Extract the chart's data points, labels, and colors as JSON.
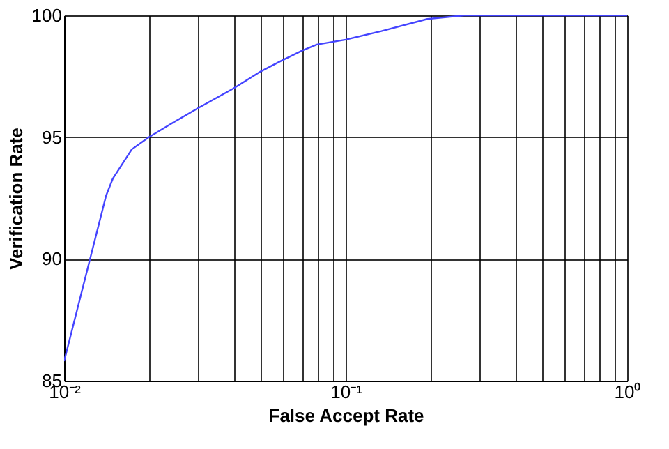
{
  "chart_data": {
    "type": "line",
    "xlabel": "False Accept Rate",
    "ylabel": "Verification Rate",
    "log": "x",
    "grid": true,
    "marker": "none",
    "line_style": "solid",
    "x": [
      0.01,
      0.0141,
      0.0149,
      0.0174,
      0.02,
      0.0244,
      0.03,
      0.04,
      0.05,
      0.0583,
      0.07,
      0.079,
      0.1,
      0.134,
      0.195,
      0.264,
      0.5,
      1
    ],
    "series": [
      {
        "color": "#4444ff",
        "values": [
          85.8,
          92.6,
          93.3,
          94.5,
          95.0,
          95.6,
          96.2,
          97.0,
          97.7,
          98.1,
          98.55,
          98.8,
          99.0,
          99.35,
          99.85,
          100,
          100,
          100
        ]
      }
    ],
    "xlim": [
      0.01,
      1
    ],
    "ylim": [
      85,
      100
    ],
    "xticks": [
      {
        "value": 0.01,
        "label": "10⁻²"
      },
      {
        "value": 0.02,
        "label": null
      },
      {
        "value": 0.03,
        "label": null
      },
      {
        "value": 0.04,
        "label": null
      },
      {
        "value": 0.05,
        "label": null
      },
      {
        "value": 0.06,
        "label": null
      },
      {
        "value": 0.07,
        "label": null
      },
      {
        "value": 0.08,
        "label": null
      },
      {
        "value": 0.09,
        "label": null
      },
      {
        "value": 0.1,
        "label": "10⁻¹"
      },
      {
        "value": 0.2,
        "label": null
      },
      {
        "value": 0.3,
        "label": null
      },
      {
        "value": 0.4,
        "label": null
      },
      {
        "value": 0.5,
        "label": null
      },
      {
        "value": 0.6,
        "label": null
      },
      {
        "value": 0.7,
        "label": null
      },
      {
        "value": 0.8,
        "label": null
      },
      {
        "value": 0.9,
        "label": null
      },
      {
        "value": 1,
        "label": "10⁰"
      }
    ],
    "yticks": [
      85,
      90,
      95,
      100
    ]
  }
}
